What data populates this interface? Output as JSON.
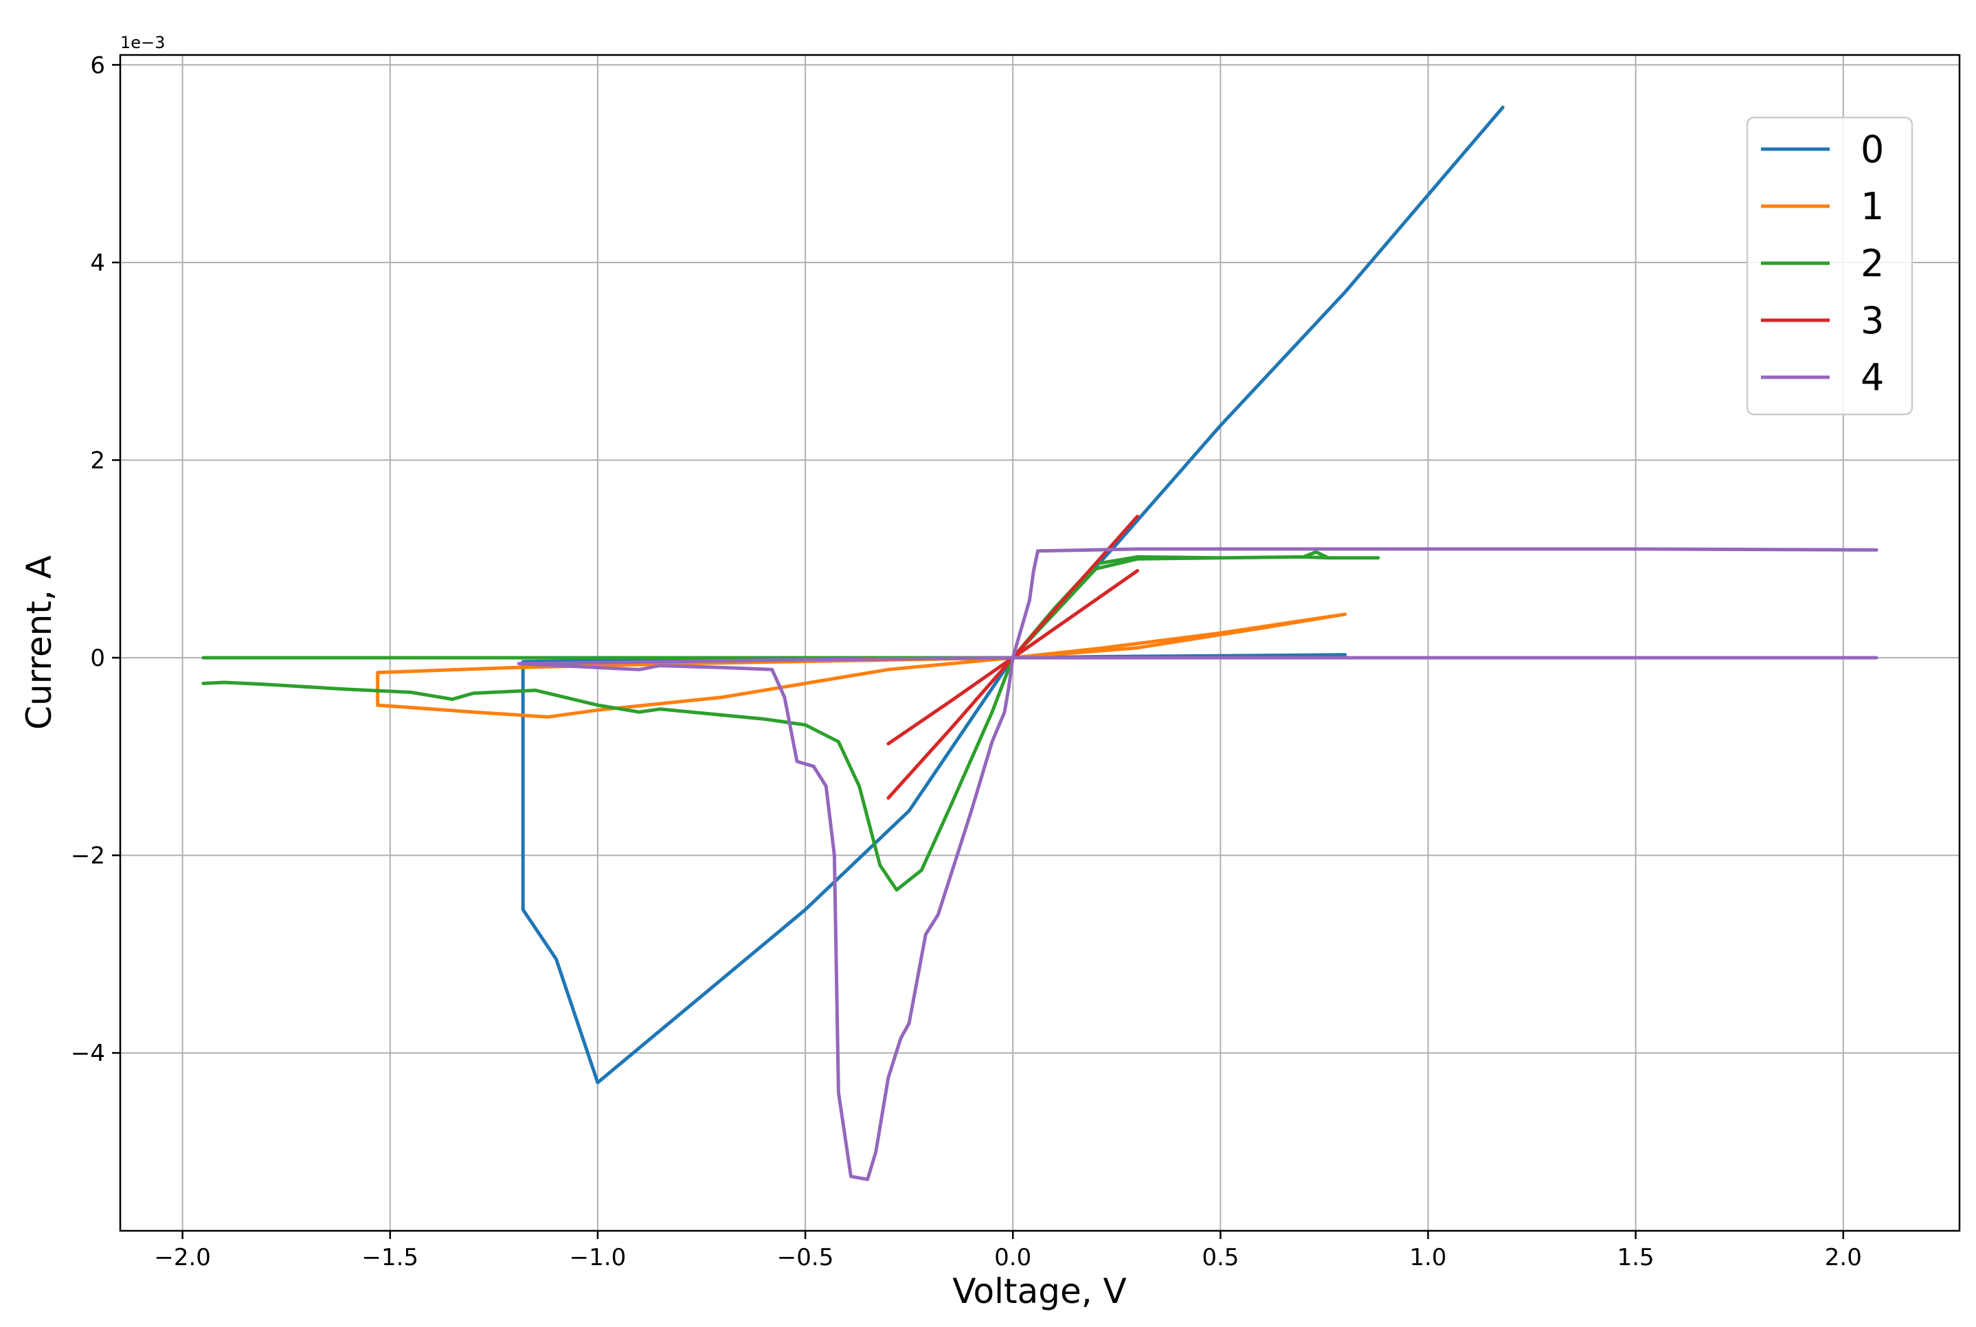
{
  "chart_data": {
    "type": "line",
    "xlabel": "Voltage, V",
    "ylabel": "Current, A",
    "y_offset_label": "1e−3",
    "xlim": [
      -2.15,
      2.28
    ],
    "ylim": [
      -5.8,
      6.1
    ],
    "grid": true,
    "legend_position": "top-right",
    "x_ticks": [
      {
        "value": -2.0,
        "label": "−2.0"
      },
      {
        "value": -1.5,
        "label": "−1.5"
      },
      {
        "value": -1.0,
        "label": "−1.0"
      },
      {
        "value": -0.5,
        "label": "−0.5"
      },
      {
        "value": 0.0,
        "label": "0.0"
      },
      {
        "value": 0.5,
        "label": "0.5"
      },
      {
        "value": 1.0,
        "label": "1.0"
      },
      {
        "value": 1.5,
        "label": "1.5"
      },
      {
        "value": 2.0,
        "label": "2.0"
      }
    ],
    "y_ticks": [
      {
        "value": -4,
        "label": "−4"
      },
      {
        "value": -2,
        "label": "−2"
      },
      {
        "value": 0,
        "label": "0"
      },
      {
        "value": 2,
        "label": "2"
      },
      {
        "value": 4,
        "label": "4"
      },
      {
        "value": 6,
        "label": "6"
      }
    ],
    "series": [
      {
        "name": "0",
        "color": "#1f77b4",
        "points": [
          [
            0.8,
            0.03
          ],
          [
            0.5,
            0.02
          ],
          [
            0.2,
            0.01
          ],
          [
            0.0,
            0.0
          ],
          [
            -0.3,
            -0.01
          ],
          [
            -0.7,
            -0.02
          ],
          [
            -1.0,
            -0.03
          ],
          [
            -1.18,
            -0.04
          ],
          [
            -1.18,
            -2.55
          ],
          [
            -1.1,
            -3.05
          ],
          [
            -1.0,
            -4.3
          ],
          [
            -0.8,
            -3.6
          ],
          [
            -0.5,
            -2.55
          ],
          [
            -0.25,
            -1.55
          ],
          [
            0.0,
            0.0
          ],
          [
            0.25,
            1.15
          ],
          [
            0.5,
            2.35
          ],
          [
            0.8,
            3.7
          ],
          [
            1.18,
            5.57
          ]
        ]
      },
      {
        "name": "1",
        "color": "#ff7f0e",
        "points": [
          [
            0.8,
            0.44
          ],
          [
            0.5,
            0.25
          ],
          [
            0.2,
            0.09
          ],
          [
            0.0,
            0.0
          ],
          [
            -0.3,
            -0.12
          ],
          [
            -0.7,
            -0.4
          ],
          [
            -1.0,
            -0.53
          ],
          [
            -1.12,
            -0.6
          ],
          [
            -1.3,
            -0.55
          ],
          [
            -1.53,
            -0.48
          ],
          [
            -1.53,
            -0.15
          ],
          [
            -1.2,
            -0.1
          ],
          [
            -0.8,
            -0.06
          ],
          [
            -0.4,
            -0.03
          ],
          [
            0.0,
            0.0
          ],
          [
            0.3,
            0.1
          ],
          [
            0.6,
            0.3
          ],
          [
            0.8,
            0.44
          ]
        ]
      },
      {
        "name": "2",
        "color": "#2ca02c",
        "points": [
          [
            -1.95,
            0.0
          ],
          [
            -1.5,
            0.0
          ],
          [
            -1.0,
            0.0
          ],
          [
            -0.5,
            0.0
          ],
          [
            -0.2,
            0.0
          ],
          [
            0.0,
            0.0
          ],
          [
            0.1,
            0.5
          ],
          [
            0.2,
            0.95
          ],
          [
            0.3,
            1.02
          ],
          [
            0.5,
            1.01
          ],
          [
            0.7,
            1.02
          ],
          [
            0.73,
            1.07
          ],
          [
            0.76,
            1.01
          ],
          [
            0.88,
            1.01
          ],
          [
            0.76,
            1.01
          ],
          [
            0.7,
            1.02
          ],
          [
            0.5,
            1.01
          ],
          [
            0.3,
            1.0
          ],
          [
            0.2,
            0.9
          ],
          [
            0.1,
            0.45
          ],
          [
            0.0,
            0.0
          ],
          [
            -0.05,
            -0.55
          ],
          [
            -0.15,
            -1.5
          ],
          [
            -0.22,
            -2.15
          ],
          [
            -0.28,
            -2.35
          ],
          [
            -0.32,
            -2.1
          ],
          [
            -0.37,
            -1.3
          ],
          [
            -0.42,
            -0.85
          ],
          [
            -0.5,
            -0.68
          ],
          [
            -0.6,
            -0.62
          ],
          [
            -0.7,
            -0.58
          ],
          [
            -0.85,
            -0.52
          ],
          [
            -0.9,
            -0.55
          ],
          [
            -1.0,
            -0.48
          ],
          [
            -1.08,
            -0.4
          ],
          [
            -1.15,
            -0.33
          ],
          [
            -1.3,
            -0.36
          ],
          [
            -1.35,
            -0.42
          ],
          [
            -1.45,
            -0.35
          ],
          [
            -1.6,
            -0.32
          ],
          [
            -1.8,
            -0.27
          ],
          [
            -1.9,
            -0.25
          ],
          [
            -1.95,
            -0.26
          ]
        ]
      },
      {
        "name": "3",
        "color": "#d62728",
        "points": [
          [
            -0.3,
            -1.42
          ],
          [
            -0.15,
            -0.72
          ],
          [
            0.0,
            0.0
          ],
          [
            0.15,
            0.72
          ],
          [
            0.3,
            1.43
          ],
          [
            0.15,
            0.72
          ],
          [
            0.0,
            0.0
          ],
          [
            -0.15,
            -0.44
          ],
          [
            -0.3,
            -0.87
          ],
          [
            -0.15,
            -0.44
          ],
          [
            0.0,
            0.0
          ],
          [
            0.15,
            0.44
          ],
          [
            0.3,
            0.88
          ]
        ]
      },
      {
        "name": "4",
        "color": "#9467bd",
        "points": [
          [
            2.08,
            0.0
          ],
          [
            1.5,
            0.0
          ],
          [
            1.0,
            0.0
          ],
          [
            0.5,
            0.0
          ],
          [
            0.0,
            0.0
          ],
          [
            -0.5,
            -0.02
          ],
          [
            -1.0,
            -0.05
          ],
          [
            -1.19,
            -0.06
          ],
          [
            -1.0,
            -0.1
          ],
          [
            -0.9,
            -0.12
          ],
          [
            -0.85,
            -0.08
          ],
          [
            -0.7,
            -0.1
          ],
          [
            -0.58,
            -0.12
          ],
          [
            -0.55,
            -0.4
          ],
          [
            -0.52,
            -1.05
          ],
          [
            -0.48,
            -1.1
          ],
          [
            -0.45,
            -1.3
          ],
          [
            -0.43,
            -2.0
          ],
          [
            -0.42,
            -4.4
          ],
          [
            -0.39,
            -5.25
          ],
          [
            -0.35,
            -5.28
          ],
          [
            -0.33,
            -5.0
          ],
          [
            -0.3,
            -4.25
          ],
          [
            -0.27,
            -3.85
          ],
          [
            -0.25,
            -3.7
          ],
          [
            -0.21,
            -2.8
          ],
          [
            -0.18,
            -2.6
          ],
          [
            -0.1,
            -1.55
          ],
          [
            -0.05,
            -0.85
          ],
          [
            -0.02,
            -0.55
          ],
          [
            -0.01,
            -0.3
          ],
          [
            0.0,
            0.0
          ],
          [
            0.04,
            0.58
          ],
          [
            0.05,
            0.88
          ],
          [
            0.06,
            1.08
          ],
          [
            0.3,
            1.1
          ],
          [
            1.0,
            1.1
          ],
          [
            1.5,
            1.1
          ],
          [
            2.08,
            1.09
          ]
        ]
      }
    ]
  }
}
